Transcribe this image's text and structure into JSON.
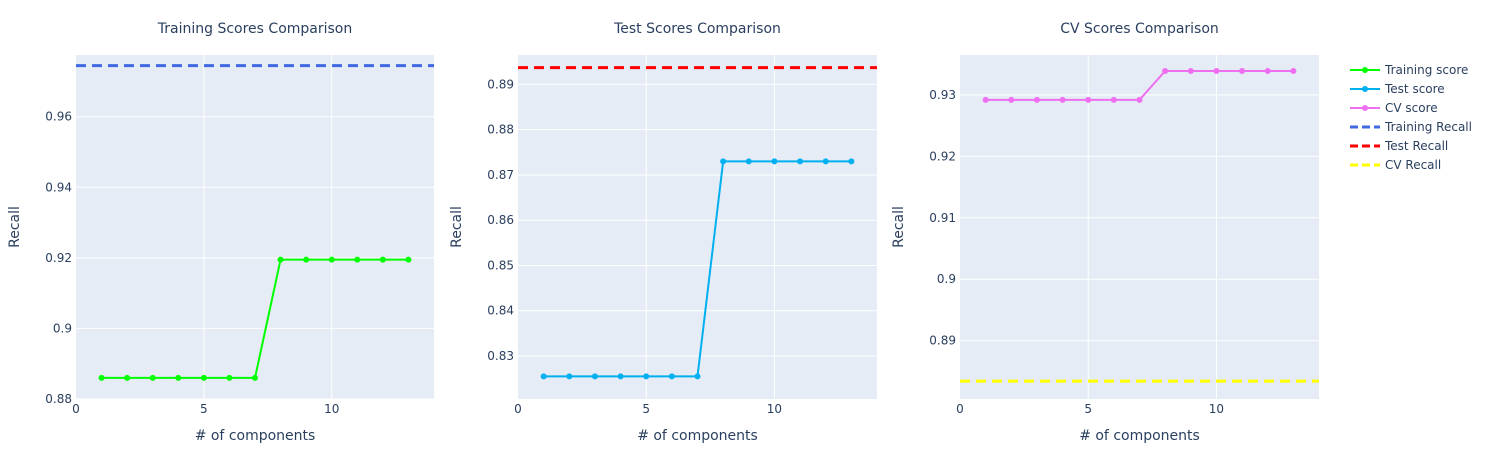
{
  "chart_data": [
    {
      "type": "line",
      "title": "Training Scores Comparison",
      "xlabel": "# of components",
      "ylabel": "Recall",
      "xlim": [
        0,
        14
      ],
      "ylim": [
        0.88,
        0.9775
      ],
      "xticks": [
        0,
        5,
        10
      ],
      "xtick_labels": [
        "0",
        "5",
        "10"
      ],
      "yticks": [
        0.88,
        0.9,
        0.92,
        0.94,
        0.96
      ],
      "ytick_labels": [
        "0.88",
        "0.9",
        "0.92",
        "0.94",
        "0.96"
      ],
      "grid": true,
      "series": [
        {
          "name": "Training score",
          "color": "#00ff00",
          "style": "lines+markers",
          "x": [
            1,
            2,
            3,
            4,
            5,
            6,
            7,
            8,
            9,
            10,
            11,
            12,
            13
          ],
          "values": [
            0.886,
            0.886,
            0.886,
            0.886,
            0.886,
            0.886,
            0.886,
            0.9195,
            0.9195,
            0.9195,
            0.9195,
            0.9195,
            0.9195
          ]
        }
      ],
      "hlines": [
        {
          "name": "Training Recall",
          "value": 0.9745,
          "color": "#4169e1"
        }
      ]
    },
    {
      "type": "line",
      "title": "Test Scores Comparison",
      "xlabel": "# of components",
      "ylabel": "Recall",
      "xlim": [
        0,
        14
      ],
      "ylim": [
        0.8205,
        0.8965
      ],
      "xticks": [
        0,
        5,
        10
      ],
      "xtick_labels": [
        "0",
        "5",
        "10"
      ],
      "yticks": [
        0.83,
        0.84,
        0.85,
        0.86,
        0.87,
        0.88,
        0.89
      ],
      "ytick_labels": [
        "0.83",
        "0.84",
        "0.85",
        "0.86",
        "0.87",
        "0.88",
        "0.89"
      ],
      "grid": true,
      "series": [
        {
          "name": "Test score",
          "color": "#00b0f0",
          "style": "lines+markers",
          "x": [
            1,
            2,
            3,
            4,
            5,
            6,
            7,
            8,
            9,
            10,
            11,
            12,
            13
          ],
          "values": [
            0.8255,
            0.8255,
            0.8255,
            0.8255,
            0.8255,
            0.8255,
            0.8255,
            0.873,
            0.873,
            0.873,
            0.873,
            0.873,
            0.873
          ]
        }
      ],
      "hlines": [
        {
          "name": "Test Recall",
          "value": 0.8937,
          "color": "#ff0000"
        }
      ]
    },
    {
      "type": "line",
      "title": "CV Scores Comparison",
      "xlabel": "# of components",
      "ylabel": "Recall",
      "xlim": [
        0,
        14
      ],
      "ylim": [
        0.8805,
        0.9365
      ],
      "xticks": [
        0,
        5,
        10
      ],
      "xtick_labels": [
        "0",
        "5",
        "10"
      ],
      "yticks": [
        0.89,
        0.9,
        0.91,
        0.92,
        0.93
      ],
      "ytick_labels": [
        "0.89",
        "0.9",
        "0.91",
        "0.92",
        "0.93"
      ],
      "grid": true,
      "series": [
        {
          "name": "CV score",
          "color": "#ee6ff0",
          "style": "lines+markers",
          "x": [
            1,
            2,
            3,
            4,
            5,
            6,
            7,
            8,
            9,
            10,
            11,
            12,
            13
          ],
          "values": [
            0.9292,
            0.9292,
            0.9292,
            0.9292,
            0.9292,
            0.9292,
            0.9292,
            0.9339,
            0.9339,
            0.9339,
            0.9339,
            0.9339,
            0.9339
          ]
        }
      ],
      "hlines": [
        {
          "name": "CV Recall",
          "value": 0.8834,
          "color": "#ffff00"
        }
      ]
    }
  ],
  "legend": {
    "placement": "right",
    "items": [
      {
        "label": "Training score",
        "color": "#00ff00",
        "kind": "line-marker"
      },
      {
        "label": "Test score",
        "color": "#00b0f0",
        "kind": "line-marker"
      },
      {
        "label": "CV score",
        "color": "#ee6ff0",
        "kind": "line-marker"
      },
      {
        "label": "Training Recall",
        "color": "#4169e1",
        "kind": "dash"
      },
      {
        "label": "Test Recall",
        "color": "#ff0000",
        "kind": "dash"
      },
      {
        "label": "CV Recall",
        "color": "#ffff00",
        "kind": "dash"
      }
    ]
  },
  "colors": {
    "plot_bg": "#e5ecf6",
    "grid": "#ffffff",
    "text": "#2a3f5f"
  }
}
